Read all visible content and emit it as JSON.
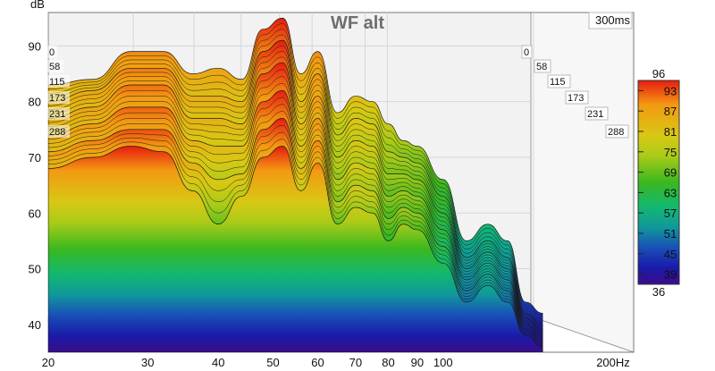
{
  "chart_data": {
    "type": "area",
    "title": "WF alt",
    "ylabel": "dB",
    "window_label": "300ms",
    "x_scale": "log",
    "xlim": [
      20,
      200
    ],
    "ylim": [
      35,
      96
    ],
    "x_ticks": [
      "20",
      "30",
      "40",
      "50",
      "60",
      "70",
      "80",
      "90",
      "100",
      "200Hz"
    ],
    "x_tick_values": [
      20,
      30,
      40,
      50,
      60,
      70,
      80,
      90,
      100,
      200
    ],
    "y_ticks": [
      "40",
      "50",
      "60",
      "70",
      "80",
      "90"
    ],
    "y_tick_values": [
      40,
      50,
      60,
      70,
      80,
      90
    ],
    "time_slices_ms": [
      "0",
      "58",
      "115",
      "173",
      "231",
      "288"
    ],
    "colorbar": {
      "min": "36",
      "max": "96",
      "ticks": [
        "93",
        "87",
        "81",
        "75",
        "69",
        "63",
        "57",
        "51",
        "45",
        "39"
      ],
      "colors": [
        "#3a0d8a",
        "#1a1aa8",
        "#1850b8",
        "#10989a",
        "#12b870",
        "#3ab820",
        "#aacb18",
        "#d8c814",
        "#f39a12",
        "#e81c10"
      ]
    },
    "series": [
      {
        "name": "0",
        "x": [
          20,
          24,
          28,
          32,
          36,
          40,
          44,
          48,
          52,
          56,
          60,
          65,
          70,
          75,
          80,
          85,
          90,
          100,
          110,
          120,
          130,
          140,
          150
        ],
        "y": [
          83,
          84,
          89,
          89,
          85,
          86,
          84,
          93,
          95,
          85,
          89,
          78,
          81,
          80,
          76,
          73,
          72,
          66,
          55,
          58,
          55,
          44,
          42
        ]
      },
      {
        "name": "58",
        "x": [
          20,
          24,
          28,
          32,
          36,
          40,
          44,
          48,
          52,
          56,
          60,
          65,
          70,
          75,
          80,
          85,
          90,
          100,
          110,
          120,
          130,
          140,
          150
        ],
        "y": [
          80,
          82,
          86,
          86,
          81,
          81,
          80,
          89,
          91,
          80,
          85,
          74,
          77,
          76,
          71,
          70,
          69,
          63,
          52,
          55,
          52,
          42,
          40
        ]
      },
      {
        "name": "115",
        "x": [
          20,
          24,
          28,
          32,
          36,
          40,
          44,
          48,
          52,
          56,
          60,
          65,
          70,
          75,
          80,
          85,
          90,
          100,
          110,
          120,
          130,
          140,
          150
        ],
        "y": [
          77,
          79,
          83,
          83,
          77,
          77,
          76,
          85,
          87,
          76,
          81,
          70,
          73,
          72,
          67,
          67,
          66,
          60,
          50,
          53,
          50,
          41,
          39
        ]
      },
      {
        "name": "173",
        "x": [
          20,
          24,
          28,
          32,
          36,
          40,
          44,
          48,
          52,
          56,
          60,
          65,
          70,
          75,
          80,
          85,
          90,
          100,
          110,
          120,
          130,
          140,
          150
        ],
        "y": [
          74,
          76,
          79,
          79,
          73,
          72,
          72,
          80,
          82,
          72,
          77,
          66,
          69,
          68,
          63,
          64,
          63,
          57,
          48,
          51,
          48,
          40,
          38
        ]
      },
      {
        "name": "231",
        "x": [
          20,
          24,
          28,
          32,
          36,
          40,
          44,
          48,
          52,
          56,
          60,
          65,
          70,
          75,
          80,
          85,
          90,
          100,
          110,
          120,
          130,
          140,
          150
        ],
        "y": [
          71,
          73,
          75,
          75,
          69,
          66,
          67,
          75,
          77,
          68,
          73,
          62,
          65,
          64,
          59,
          61,
          60,
          54,
          46,
          49,
          46,
          39,
          37
        ]
      },
      {
        "name": "288",
        "x": [
          20,
          24,
          28,
          32,
          36,
          40,
          44,
          48,
          52,
          56,
          60,
          65,
          70,
          75,
          80,
          85,
          90,
          100,
          110,
          120,
          130,
          140,
          150
        ],
        "y": [
          68,
          70,
          72,
          71,
          64,
          58,
          63,
          70,
          72,
          64,
          69,
          58,
          61,
          60,
          55,
          58,
          57,
          51,
          44,
          47,
          44,
          38,
          36
        ]
      }
    ]
  }
}
